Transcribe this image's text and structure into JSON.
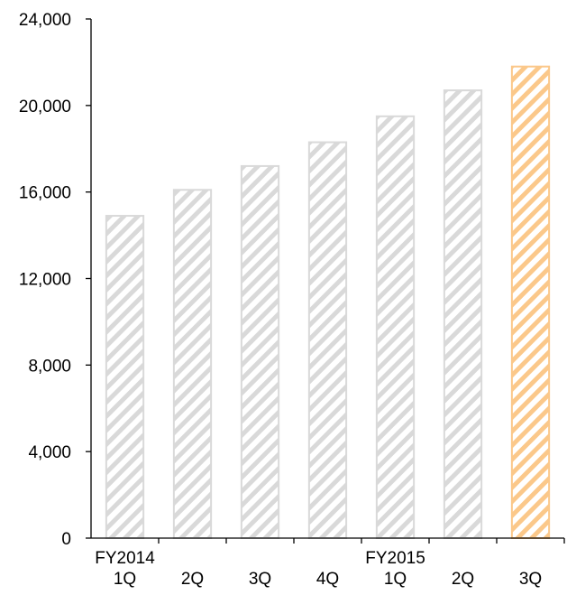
{
  "chart_data": {
    "type": "bar",
    "title": "",
    "xlabel": "",
    "ylabel": "",
    "ylim": [
      0,
      24000
    ],
    "yticks": [
      0,
      4000,
      8000,
      12000,
      16000,
      20000,
      24000
    ],
    "ytick_labels": [
      "0",
      "4,000",
      "8,000",
      "12,000",
      "16,000",
      "20,000",
      "24,000"
    ],
    "categories": [
      "FY2014 1Q",
      "2Q",
      "3Q",
      "4Q",
      "FY2015 1Q",
      "2Q",
      "3Q"
    ],
    "category_lines": [
      [
        "FY2014",
        "1Q"
      ],
      [
        "2Q"
      ],
      [
        "3Q"
      ],
      [
        "4Q"
      ],
      [
        "FY2015",
        "1Q"
      ],
      [
        "2Q"
      ],
      [
        "3Q"
      ]
    ],
    "values": [
      14900,
      16100,
      17200,
      18300,
      19500,
      20700,
      21800
    ],
    "highlight_index": 6,
    "grid": false,
    "colors": {
      "bar_fill": "#d9d9d9",
      "bar_highlight": "#fbc88a",
      "axis": "#000000"
    }
  }
}
